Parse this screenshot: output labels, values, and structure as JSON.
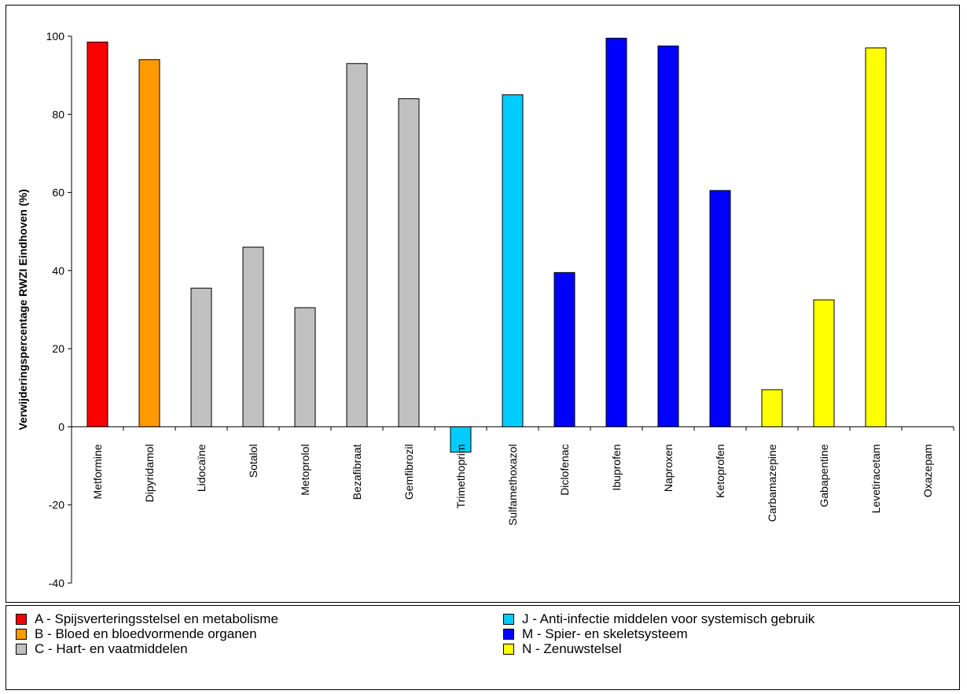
{
  "chart_data": {
    "type": "bar",
    "title": "",
    "xlabel": "",
    "ylabel": "Verwijderingspercentage RWZI Eindhoven (%)",
    "ylim": [
      -40,
      100
    ],
    "yticks": [
      -40,
      -20,
      0,
      20,
      40,
      60,
      80,
      100
    ],
    "ytick_labels": [
      "-40",
      "-20",
      "0",
      "20",
      "40",
      "60",
      "80",
      "100"
    ],
    "grid": false,
    "legend_position": "bottom",
    "categories": [
      "Metformine",
      "Dipyridamol",
      "Lidocaïne",
      "Sotalol",
      "Metoprolol",
      "Bezafibraat",
      "Gemfibrozil",
      "Trimethoprim",
      "Sulfamethoxazol",
      "Diclofenac",
      "Ibuprofen",
      "Naproxen",
      "Ketoprofen",
      "Carbamazepine",
      "Gabapentine",
      "Levetiracetam",
      "Oxazepam"
    ],
    "values": [
      98.5,
      94,
      35.5,
      46,
      30.5,
      93,
      84,
      -6.5,
      85,
      39.5,
      99.5,
      97.5,
      60.5,
      9.5,
      32.5,
      97,
      null
    ],
    "groups": [
      "A",
      "B",
      "C",
      "C",
      "C",
      "C",
      "C",
      "J",
      "J",
      "M",
      "M",
      "M",
      "M",
      "N",
      "N",
      "N",
      "N"
    ]
  },
  "legend": {
    "items": [
      {
        "key": "A",
        "label": "A - Spijsverteringsstelsel en metabolisme",
        "color": "#ff0000"
      },
      {
        "key": "B",
        "label": "B - Bloed en bloedvormende organen",
        "color": "#ff9900"
      },
      {
        "key": "C",
        "label": "C - Hart- en vaatmiddelen",
        "color": "#c0c0c0"
      },
      {
        "key": "J",
        "label": "J - Anti-infectie middelen voor systemisch gebruik",
        "color": "#00ccff"
      },
      {
        "key": "M",
        "label": "M - Spier- en skeletsysteem",
        "color": "#0000ff"
      },
      {
        "key": "N",
        "label": "N - Zenuwstelsel",
        "color": "#ffff00"
      }
    ]
  }
}
